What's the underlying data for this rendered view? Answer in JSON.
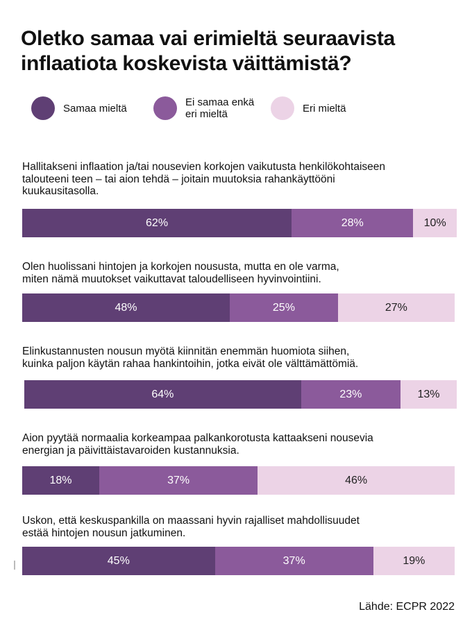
{
  "title": "Oletko samaa vai erimieltä seuraavista\ninflaatiota koskevista väittämistä?",
  "legend": [
    {
      "label": "Samaa mieltä",
      "color": "#5f3f74"
    },
    {
      "label": "Ei samaa enkä\neri mieltä",
      "color": "#8b5a9b"
    },
    {
      "label": "Eri mieltä",
      "color": "#ecd3e6"
    }
  ],
  "source": "Lähde: ECPR 2022",
  "chart_data": {
    "type": "bar",
    "stacked": true,
    "orientation": "horizontal",
    "categories": [
      "Hallitakseni inflaation ja/tai nousevien korkojen vaikutusta henkilökohtaiseen\ntalouteeni teen – tai aion tehdä – joitain muutoksia rahankäyttööni\nkuukausitasolla.",
      "Olen huolissani hintojen ja korkojen noususta, mutta en ole varma,\nmiten nämä muutokset vaikuttavat taloudelliseen hyvinvointiini.",
      "Elinkustannusten nousun myötä kiinnitän enemmän huomiota siihen,\nkuinka paljon käytän rahaa hankintoihin, jotka eivät ole välttämättömiä.",
      "Aion pyytää normaalia korkeampaa palkankorotusta kattaakseni nousevia\nenergian ja päivittäistavaroiden kustannuksia.",
      "Uskon, että keskuspankilla on maassani hyvin rajalliset mahdollisuudet\nestää hintojen nousun jatkuminen."
    ],
    "series": [
      {
        "name": "Samaa mieltä",
        "values": [
          62,
          48,
          64,
          18,
          45
        ],
        "labels": [
          "62%",
          "48%",
          "64%",
          "18%",
          "45%"
        ],
        "color": "#5f3f74"
      },
      {
        "name": "Ei samaa enkä eri mieltä",
        "values": [
          28,
          25,
          23,
          37,
          37
        ],
        "labels": [
          "28%",
          "25%",
          "23%",
          "37%",
          "37%"
        ],
        "color": "#8b5a9b"
      },
      {
        "name": "Eri mieltä",
        "values": [
          10,
          27,
          13,
          46,
          19
        ],
        "labels": [
          "10%",
          "27%",
          "13%",
          "46%",
          "19%"
        ],
        "color": "#ecd3e6"
      }
    ],
    "xlim": [
      0,
      100
    ],
    "legend_position": "top",
    "grid": false
  }
}
